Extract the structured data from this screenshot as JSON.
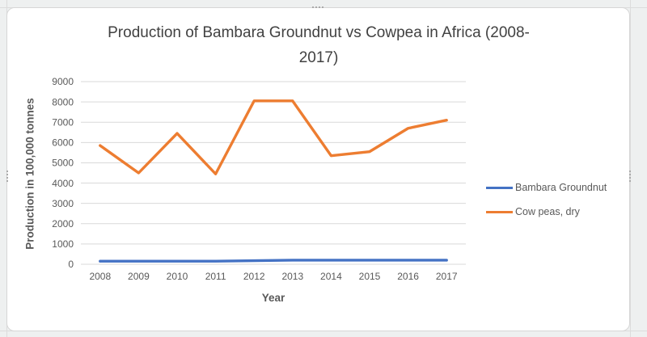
{
  "chart_data": {
    "type": "line",
    "title": "Production of Bambara Groundnut vs Cowpea in Africa (2008-2017)",
    "title_lines": [
      "Production of Bambara Groundnut vs Cowpea in Africa (2008-",
      "2017)"
    ],
    "xlabel": "Year",
    "ylabel": "Production in 100,000 tonnes",
    "categories": [
      "2008",
      "2009",
      "2010",
      "2011",
      "2012",
      "2013",
      "2014",
      "2015",
      "2016",
      "2017"
    ],
    "series": [
      {
        "name": "Bambara Groundnut",
        "color": "#4472C4",
        "values": [
          150,
          150,
          150,
          150,
          175,
          200,
          200,
          200,
          200,
          200
        ]
      },
      {
        "name": "Cow peas, dry",
        "color": "#ED7D31",
        "values": [
          5850,
          4500,
          6450,
          4450,
          8050,
          8050,
          5350,
          5550,
          6700,
          7100
        ]
      }
    ],
    "ylim": [
      0,
      9000
    ],
    "ytick_step": 1000,
    "grid": true,
    "legend_position": "right",
    "gridline_color": "#d9d9d9"
  }
}
